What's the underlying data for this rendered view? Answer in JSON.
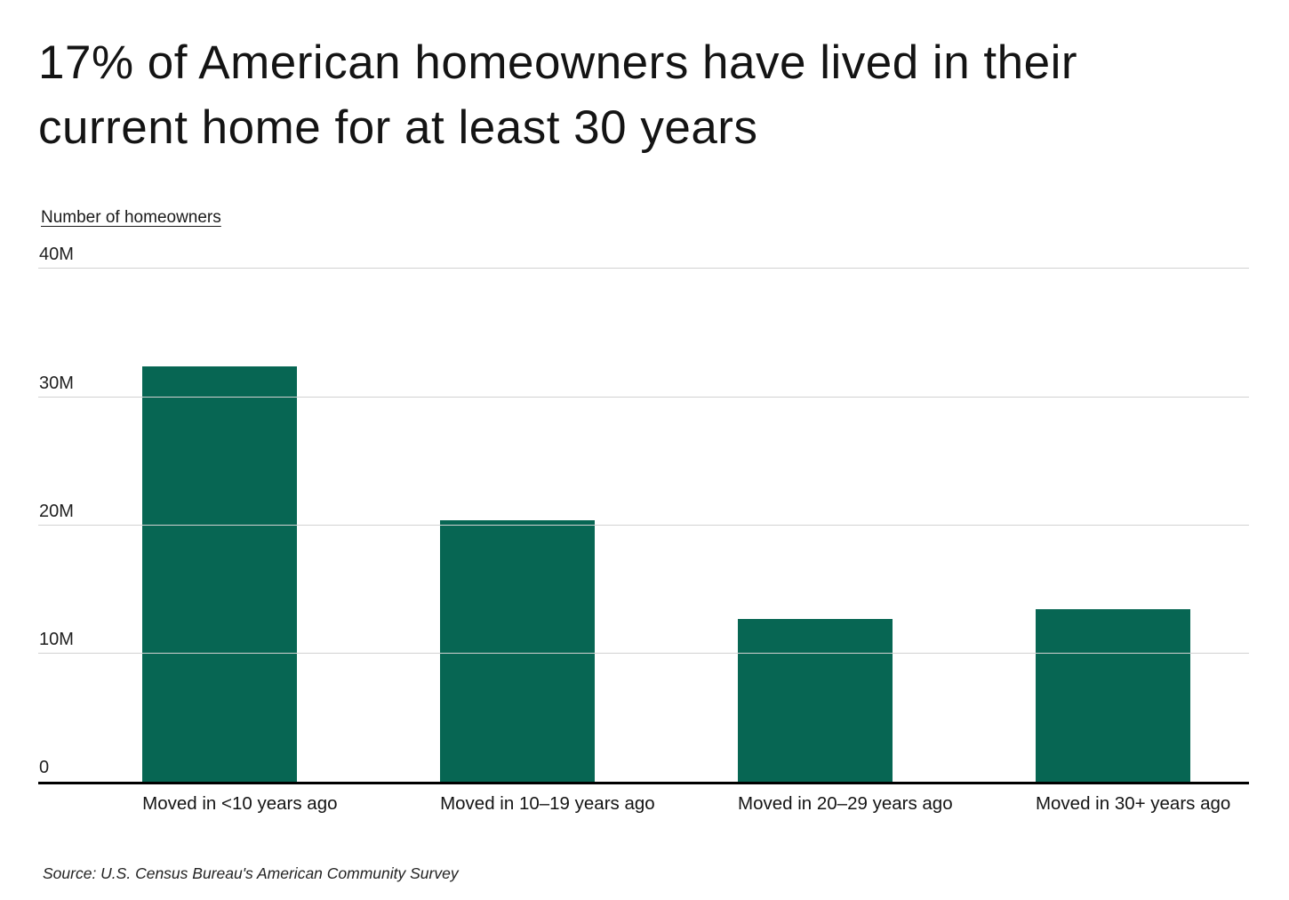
{
  "title": "17% of American homeowners have lived in their current home for at least 30 years",
  "axis_title": "Number of homeowners",
  "source": "Source:  U.S. Census Bureau's American Community Survey",
  "chart_data": {
    "type": "bar",
    "title": "17% of American homeowners have lived in their current home for at least 30 years",
    "ylabel": "Number of homeowners",
    "categories": [
      "Moved in <10 years ago",
      "Moved in 10–19 years ago",
      "Moved in 20–29 years ago",
      "Moved in 30+ years ago"
    ],
    "values": [
      32.4,
      20.4,
      12.7,
      13.5
    ],
    "value_unit": "millions of homeowners",
    "ylim": [
      0,
      40
    ],
    "yticks": [
      {
        "label": "40M",
        "value": 40
      },
      {
        "label": "30M",
        "value": 30
      },
      {
        "label": "20M",
        "value": 20
      },
      {
        "label": "10M",
        "value": 10
      },
      {
        "label": "0",
        "value": 0
      }
    ],
    "grid": true,
    "legend": "none",
    "bar_color": "#076653",
    "gridline_color": "#d2d2d2",
    "axis_line_color": "#000000"
  }
}
